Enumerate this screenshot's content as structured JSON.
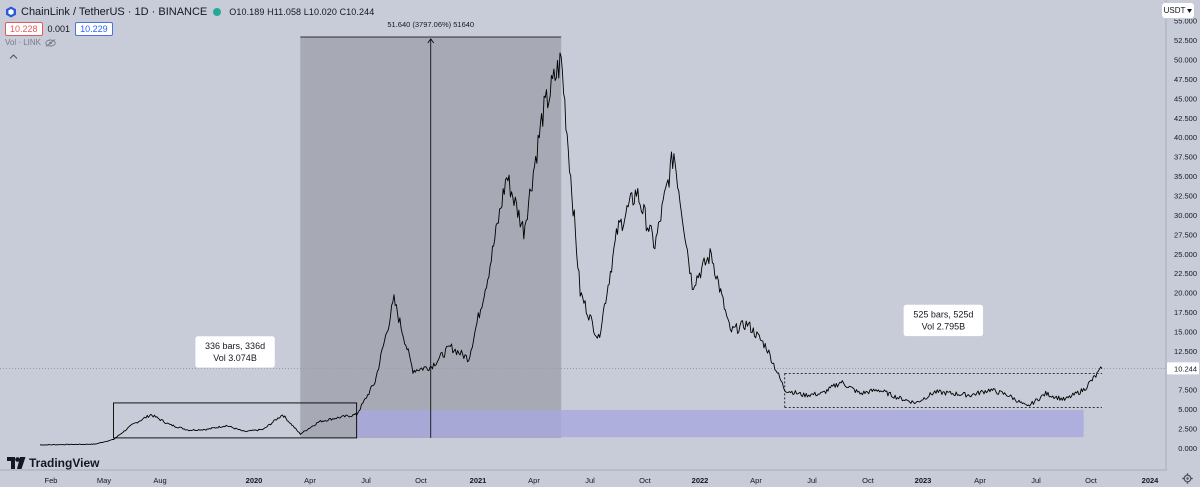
{
  "header": {
    "symbol": "ChainLink / TetherUS · 1D · BINANCE",
    "ohlc": "O10.189 H11.058 L10.020 C10.244",
    "sell_price": "10.228",
    "spread": "0.001",
    "buy_price": "10.229",
    "volume_label": "Vol · LINK"
  },
  "currency_label": "USDT",
  "brand": "TradingView",
  "colors": {
    "background": "#c8ccd8",
    "price_line": "#000000",
    "measure_fill": "#9c9ea8",
    "range_fill": "#a9a8de",
    "up": "#22ab94",
    "down": "#e05a5a"
  },
  "chart_data": {
    "type": "line",
    "title": "",
    "symbol": "LINKUSDT",
    "exchange": "BINANCE",
    "interval": "1D",
    "scale": "linear",
    "ylim": [
      -0.6,
      55.8
    ],
    "y_ticks": [
      "55.000",
      "52.500",
      "50.000",
      "47.500",
      "45.000",
      "42.500",
      "40.000",
      "37.500",
      "35.000",
      "32.500",
      "30.000",
      "27.500",
      "25.000",
      "22.500",
      "20.000",
      "17.500",
      "15.000",
      "12.500",
      "10.000",
      "7.500",
      "5.000",
      "2.500",
      "0.000"
    ],
    "x_ticks": [
      "Feb",
      "May",
      "Aug",
      "2020",
      "Apr",
      "Jul",
      "Oct",
      "2021",
      "Apr",
      "Jul",
      "Oct",
      "2022",
      "Apr",
      "Jul",
      "Oct",
      "2023",
      "Apr",
      "Jul",
      "Oct",
      "2024"
    ],
    "last_price": "10.244",
    "x": [
      "2019-01",
      "2019-04",
      "2019-05",
      "2019-06",
      "2019-07",
      "2019-08",
      "2019-09",
      "2019-10",
      "2019-11",
      "2019-12",
      "2020-01",
      "2020-02",
      "2020-03",
      "2020-04",
      "2020-05",
      "2020-06",
      "2020-07",
      "2020-08",
      "2020-09",
      "2020-10",
      "2020-11",
      "2020-12",
      "2021-01",
      "2021-02",
      "2021-03",
      "2021-04",
      "2021-05",
      "2021-06",
      "2021-07",
      "2021-08",
      "2021-09",
      "2021-10",
      "2021-11",
      "2021-12",
      "2022-01",
      "2022-02",
      "2022-03",
      "2022-04",
      "2022-05",
      "2022-06",
      "2022-07",
      "2022-08",
      "2022-09",
      "2022-10",
      "2022-11",
      "2022-12",
      "2023-01",
      "2023-02",
      "2023-03",
      "2023-04",
      "2023-05",
      "2023-06",
      "2023-07",
      "2023-08",
      "2023-09",
      "2023-10"
    ],
    "values": [
      0.4,
      0.5,
      1.1,
      3.0,
      4.3,
      3.0,
      2.3,
      2.4,
      2.9,
      2.1,
      2.4,
      4.3,
      1.8,
      3.4,
      3.9,
      4.3,
      8.5,
      19.0,
      10.0,
      10.5,
      13.0,
      11.5,
      22.0,
      35.0,
      28.0,
      43.0,
      50.0,
      20.0,
      14.0,
      28.0,
      33.0,
      26.0,
      38.0,
      21.0,
      25.0,
      15.0,
      16.0,
      13.0,
      7.5,
      6.8,
      7.0,
      8.5,
      7.0,
      7.5,
      6.5,
      5.8,
      7.2,
      7.0,
      6.8,
      7.5,
      6.8,
      5.3,
      7.0,
      6.2,
      7.5,
      10.2
    ],
    "annotations": [
      {
        "type": "date-price-range",
        "label": "51.640 (3797.06%) 51640",
        "from": "2020-03",
        "to": "2021-05",
        "low": 1.3,
        "high": 52.9
      },
      {
        "type": "date-range",
        "label_line1": "336 bars, 336d",
        "label_line2": "Vol 3.074B",
        "from": "2019-05",
        "to": "2020-06",
        "low": 1.3,
        "high": 5.8
      },
      {
        "type": "date-range",
        "label_line1": "525 bars, 525d",
        "label_line2": "Vol 2.795B",
        "from": "2022-05",
        "to": "2023-10",
        "low": 5.2,
        "high": 9.6
      },
      {
        "type": "price-zone",
        "from": "2020-06",
        "to": "2023-09",
        "low": 1.4,
        "high": 4.9
      }
    ]
  }
}
